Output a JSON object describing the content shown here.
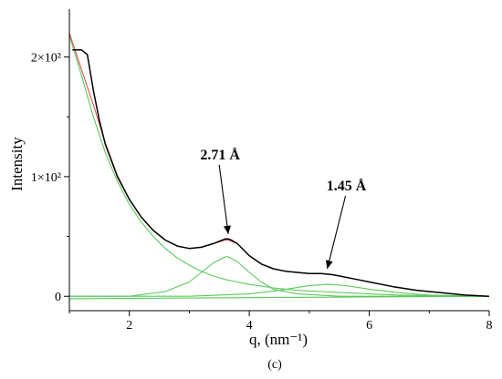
{
  "chart_data": {
    "type": "line",
    "title": "",
    "xlabel": "q, (nm⁻¹)",
    "ylabel": "Intensity",
    "panel_label": "(c)",
    "xlim": [
      1.0,
      8.0
    ],
    "ylim": [
      -12,
      240
    ],
    "x_ticks": [
      {
        "value": 2,
        "label": "2"
      },
      {
        "value": 4,
        "label": "4"
      },
      {
        "value": 6,
        "label": "6"
      },
      {
        "value": 8,
        "label": "8"
      }
    ],
    "y_ticks": [
      {
        "value": 0,
        "label": "0"
      },
      {
        "value": 100,
        "label": "1×10²"
      },
      {
        "value": 200,
        "label": "2×10²"
      }
    ],
    "grid": false,
    "legend": "none",
    "series": [
      {
        "color": "#000000",
        "role": "measured",
        "x": [
          1.05,
          1.2,
          1.3,
          1.4,
          1.5,
          1.6,
          1.8,
          2.0,
          2.2,
          2.4,
          2.6,
          2.8,
          3.0,
          3.2,
          3.4,
          3.5,
          3.6,
          3.65,
          3.7,
          3.8,
          3.9,
          4.0,
          4.2,
          4.4,
          4.6,
          4.8,
          5.0,
          5.2,
          5.4,
          5.6,
          5.8,
          6.0,
          6.4,
          6.8,
          7.2,
          7.6,
          8.0
        ],
        "y": [
          206,
          206,
          202,
          172,
          147,
          127,
          100,
          81,
          66,
          55,
          47,
          42,
          40,
          41,
          44,
          46,
          48,
          48,
          47,
          44,
          39,
          34,
          27,
          23,
          21,
          20,
          19,
          19,
          18,
          16,
          14,
          12,
          8,
          5,
          3,
          1,
          0
        ]
      },
      {
        "color": "#e05050",
        "role": "cumulative-fit",
        "x": [
          1.0,
          1.2,
          1.4,
          1.6,
          1.8,
          2.0,
          2.2,
          2.4,
          2.6,
          2.8,
          3.0,
          3.2,
          3.4,
          3.6,
          3.65,
          3.8,
          4.0,
          4.2,
          4.4,
          4.6,
          4.8,
          5.0,
          5.2,
          5.4,
          5.6,
          5.8,
          6.0,
          6.4,
          6.8,
          7.2,
          7.6,
          8.0
        ],
        "y": [
          220,
          190,
          160,
          128,
          101,
          81,
          66,
          55,
          47,
          42,
          40,
          41,
          44,
          47,
          47,
          44,
          34,
          27,
          23,
          21,
          20,
          19,
          19,
          18,
          16,
          14,
          12,
          8,
          5,
          3,
          1,
          0
        ]
      },
      {
        "color": "#5cc85c",
        "role": "background-component",
        "x": [
          1.0,
          1.2,
          1.4,
          1.6,
          1.8,
          2.0,
          2.2,
          2.4,
          2.6,
          2.8,
          3.0,
          3.2,
          3.4,
          3.6,
          3.8,
          4.0,
          4.4,
          4.8,
          5.2,
          5.6,
          6.0,
          6.5,
          7.0,
          7.5,
          8.0
        ],
        "y": [
          218,
          185,
          150,
          120,
          96,
          77,
          62,
          50,
          40,
          32,
          26,
          21,
          17,
          14,
          12,
          10,
          7,
          5,
          4,
          3,
          2,
          1,
          0.5,
          0.2,
          0
        ]
      },
      {
        "color": "#5cc85c",
        "role": "peak-component",
        "x": [
          1.0,
          2.0,
          2.6,
          3.0,
          3.2,
          3.4,
          3.6,
          3.65,
          3.8,
          4.0,
          4.2,
          4.4,
          4.8,
          5.5,
          8.0
        ],
        "y": [
          0,
          0,
          4,
          12,
          20,
          28,
          33,
          33,
          29,
          20,
          12,
          6,
          2,
          0,
          0
        ]
      },
      {
        "color": "#5cc85c",
        "role": "peak-component",
        "x": [
          1.0,
          3.0,
          4.0,
          4.5,
          5.0,
          5.3,
          5.6,
          6.0,
          6.5,
          7.0,
          8.0
        ],
        "y": [
          0,
          0,
          2,
          5,
          9,
          10,
          9,
          6,
          3,
          1,
          0
        ]
      },
      {
        "color": "#5cc85c",
        "role": "baseline",
        "x": [
          1.0,
          8.0
        ],
        "y": [
          -2,
          0
        ]
      }
    ],
    "annotations": [
      {
        "text": "2.71 Å",
        "x": 3.65,
        "y": 49
      },
      {
        "text": "1.45 Å",
        "x": 5.3,
        "y": 20
      }
    ]
  }
}
